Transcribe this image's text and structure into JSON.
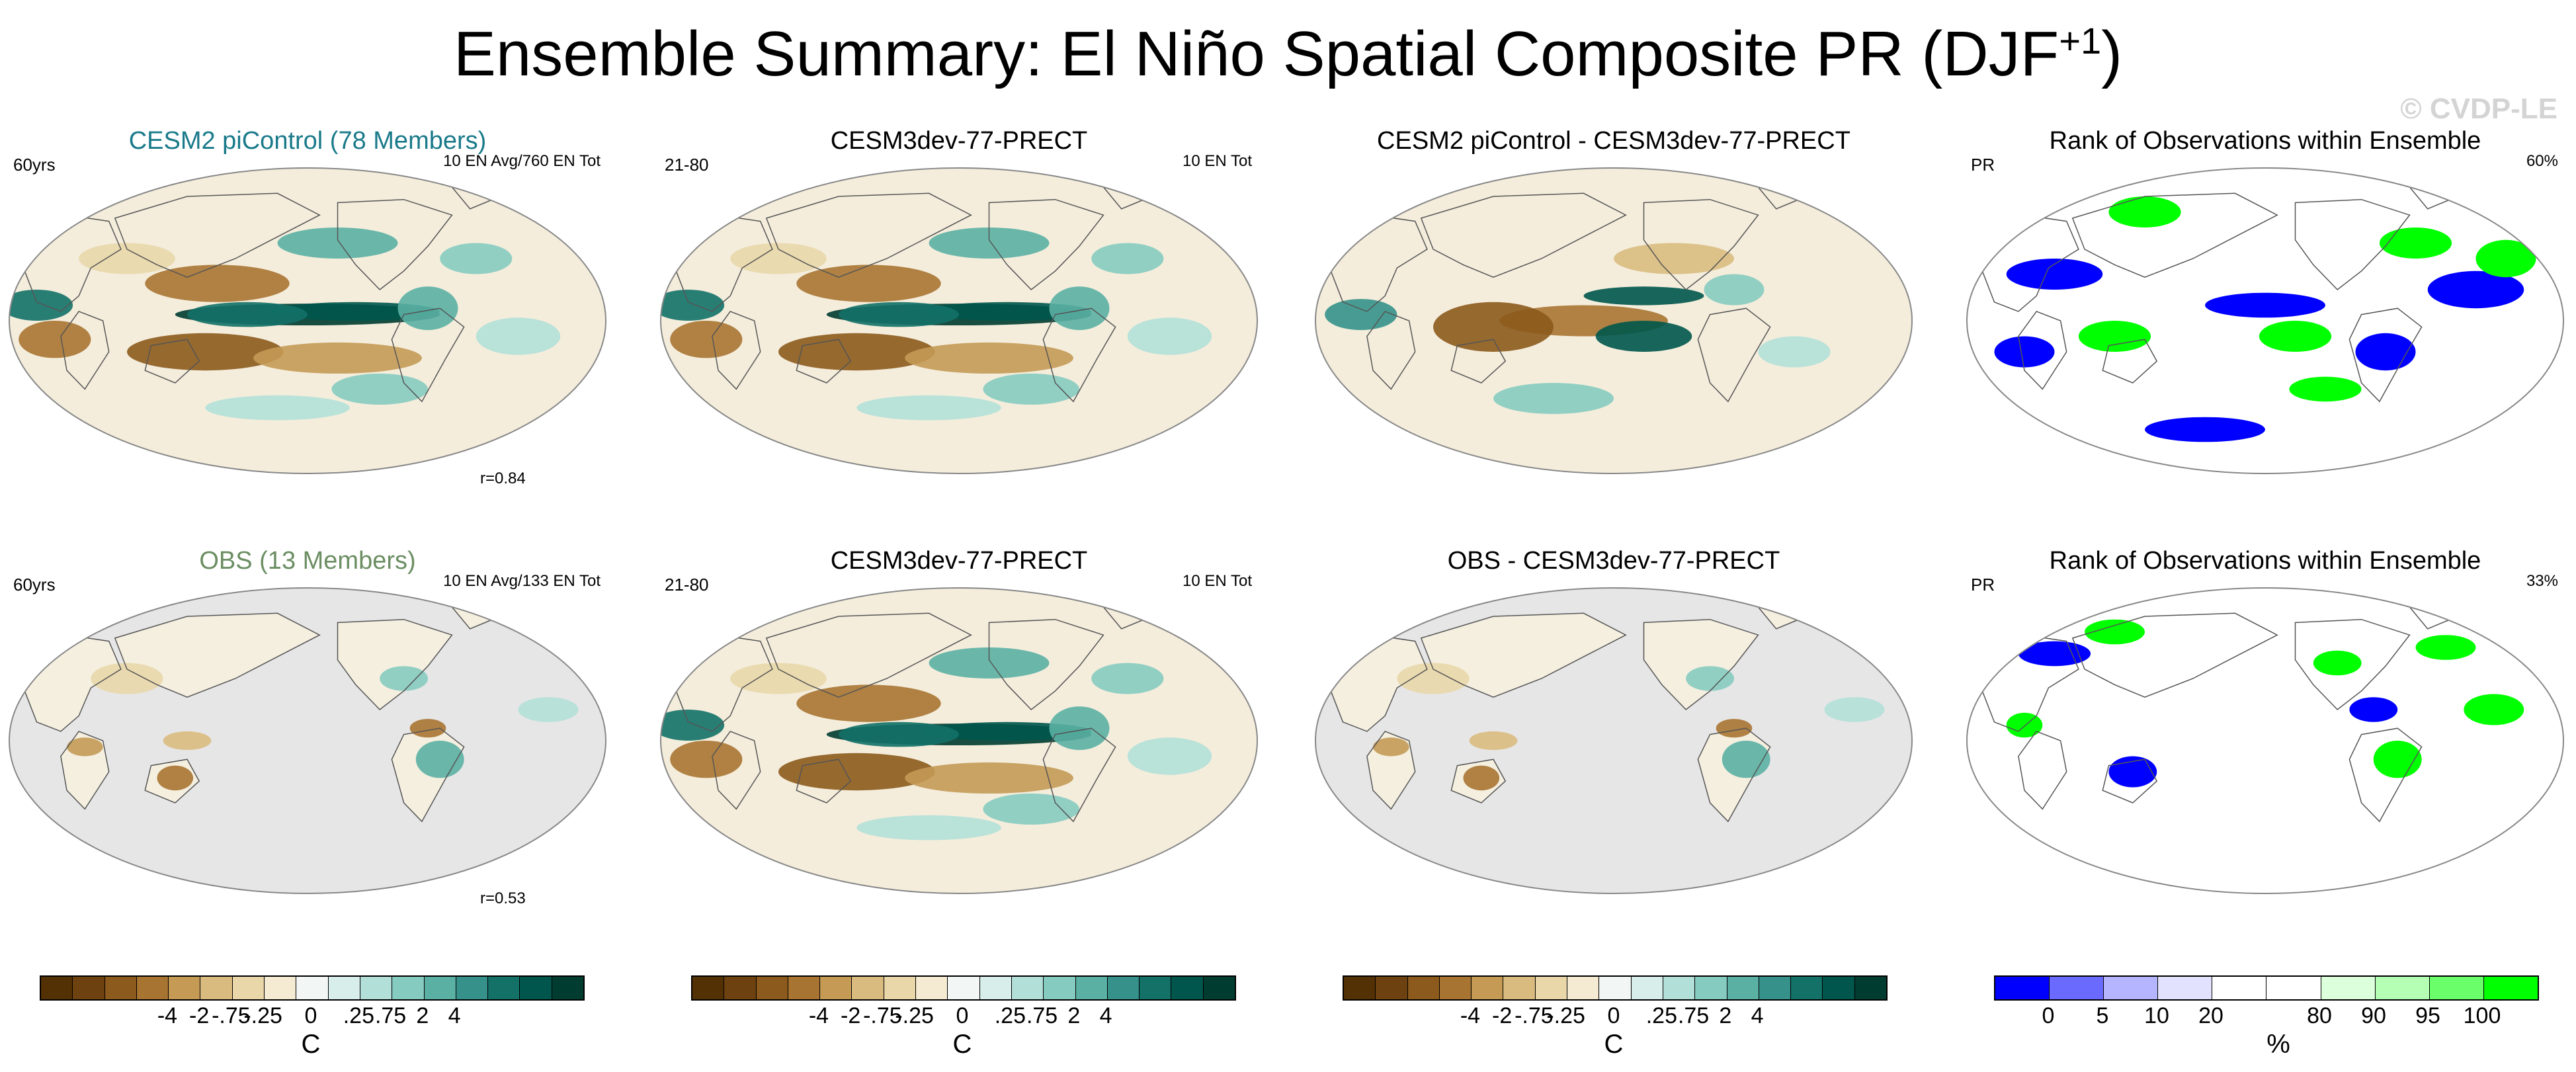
{
  "title_main": "Ensemble Summary: El Niño Spatial Composite PR (DJF",
  "title_sup": "+1",
  "title_end": ")",
  "watermark": "© CVDP-LE",
  "panels": [
    {
      "title": "CESM2 piControl (78 Members)",
      "title_color": "#1a7a8a",
      "left": "60yrs",
      "right": "10 EN Avg/760 EN Tot",
      "r": "r=0.84",
      "style": "model_ens"
    },
    {
      "title": "CESM3dev-77-PRECT",
      "title_color": "#000000",
      "left": "21-80",
      "right": "10 EN Tot",
      "r": "",
      "style": "model"
    },
    {
      "title": "CESM2 piControl - CESM3dev-77-PRECT",
      "title_color": "#000000",
      "left": "",
      "right": "",
      "r": "",
      "style": "diff"
    },
    {
      "title": "Rank of Observations within Ensemble",
      "title_color": "#000000",
      "left": "PR",
      "right": "60%",
      "r": "",
      "style": "rank_full"
    },
    {
      "title": "OBS (13 Members)",
      "title_color": "#6b8e62",
      "left": "60yrs",
      "right": "10 EN Avg/133 EN Tot",
      "r": "r=0.53",
      "style": "obs"
    },
    {
      "title": "CESM3dev-77-PRECT",
      "title_color": "#000000",
      "left": "21-80",
      "right": "10 EN Tot",
      "r": "",
      "style": "model"
    },
    {
      "title": "OBS - CESM3dev-77-PRECT",
      "title_color": "#000000",
      "left": "",
      "right": "",
      "r": "",
      "style": "obs_diff"
    },
    {
      "title": "Rank of Observations within Ensemble",
      "title_color": "#000000",
      "left": "PR",
      "right": "33%",
      "r": "",
      "style": "rank_land"
    }
  ],
  "colorbars": [
    {
      "colors": [
        "#543005",
        "#6e4210",
        "#8c5a1c",
        "#a87432",
        "#c49a55",
        "#d9bb7f",
        "#e9d7aa",
        "#f5ebd3",
        "#f2f7f6",
        "#d7eeea",
        "#b2e0d8",
        "#86cbc0",
        "#5bb0a4",
        "#35918a",
        "#137168",
        "#00564c",
        "#003c30"
      ],
      "ticks": [
        "-4",
        "-2",
        "-.75",
        "-.25",
        "0",
        ".25",
        ".75",
        "2",
        "4"
      ],
      "unit": "C"
    },
    {
      "colors": [
        "#543005",
        "#6e4210",
        "#8c5a1c",
        "#a87432",
        "#c49a55",
        "#d9bb7f",
        "#e9d7aa",
        "#f5ebd3",
        "#f2f7f6",
        "#d7eeea",
        "#b2e0d8",
        "#86cbc0",
        "#5bb0a4",
        "#35918a",
        "#137168",
        "#00564c",
        "#003c30"
      ],
      "ticks": [
        "-4",
        "-2",
        "-.75",
        "-.25",
        "0",
        ".25",
        ".75",
        "2",
        "4"
      ],
      "unit": "C"
    },
    {
      "colors": [
        "#543005",
        "#6e4210",
        "#8c5a1c",
        "#a87432",
        "#c49a55",
        "#d9bb7f",
        "#e9d7aa",
        "#f5ebd3",
        "#f2f7f6",
        "#d7eeea",
        "#b2e0d8",
        "#86cbc0",
        "#5bb0a4",
        "#35918a",
        "#137168",
        "#00564c",
        "#003c30"
      ],
      "ticks": [
        "-4",
        "-2",
        "-.75",
        "-.25",
        "0",
        ".25",
        ".75",
        "2",
        "4"
      ],
      "unit": "C"
    },
    {
      "colors": [
        "#0000ff",
        "#6a6aff",
        "#b4b4ff",
        "#e2e2ff",
        "#ffffff",
        "#ffffff",
        "#dcffdc",
        "#b4ffb4",
        "#6aff6a",
        "#00ff00"
      ],
      "ticks": [
        "0",
        "5",
        "10",
        "20",
        "80",
        "90",
        "95",
        "100"
      ],
      "unit": "%"
    }
  ],
  "chart_data": {
    "type": "heatmap",
    "title": "Ensemble Summary: El Niño Spatial Composite PR (DJF+1)",
    "subplots": [
      {
        "title": "CESM2 piControl (78 Members)",
        "period": "60yrs",
        "events": "10 EN Avg/760 EN Tot",
        "pattern_correlation": 0.84
      },
      {
        "title": "CESM3dev-77-PRECT",
        "period": "21-80",
        "events": "10 EN Tot"
      },
      {
        "title": "CESM2 piControl - CESM3dev-77-PRECT"
      },
      {
        "title": "Rank of Observations within Ensemble",
        "variable": "PR",
        "percent": 60
      },
      {
        "title": "OBS (13 Members)",
        "period": "60yrs",
        "events": "10 EN Avg/133 EN Tot",
        "pattern_correlation": 0.53
      },
      {
        "title": "CESM3dev-77-PRECT",
        "period": "21-80",
        "events": "10 EN Tot"
      },
      {
        "title": "OBS - CESM3dev-77-PRECT"
      },
      {
        "title": "Rank of Observations within Ensemble",
        "variable": "PR",
        "percent": 33
      }
    ],
    "colorbar_levels_pr": [
      -4,
      -2,
      -0.75,
      -0.25,
      0,
      0.25,
      0.75,
      2,
      4
    ],
    "colorbar_unit_pr": "C",
    "colorbar_levels_rank": [
      0,
      5,
      10,
      20,
      80,
      90,
      95,
      100
    ],
    "colorbar_unit_rank": "%"
  }
}
